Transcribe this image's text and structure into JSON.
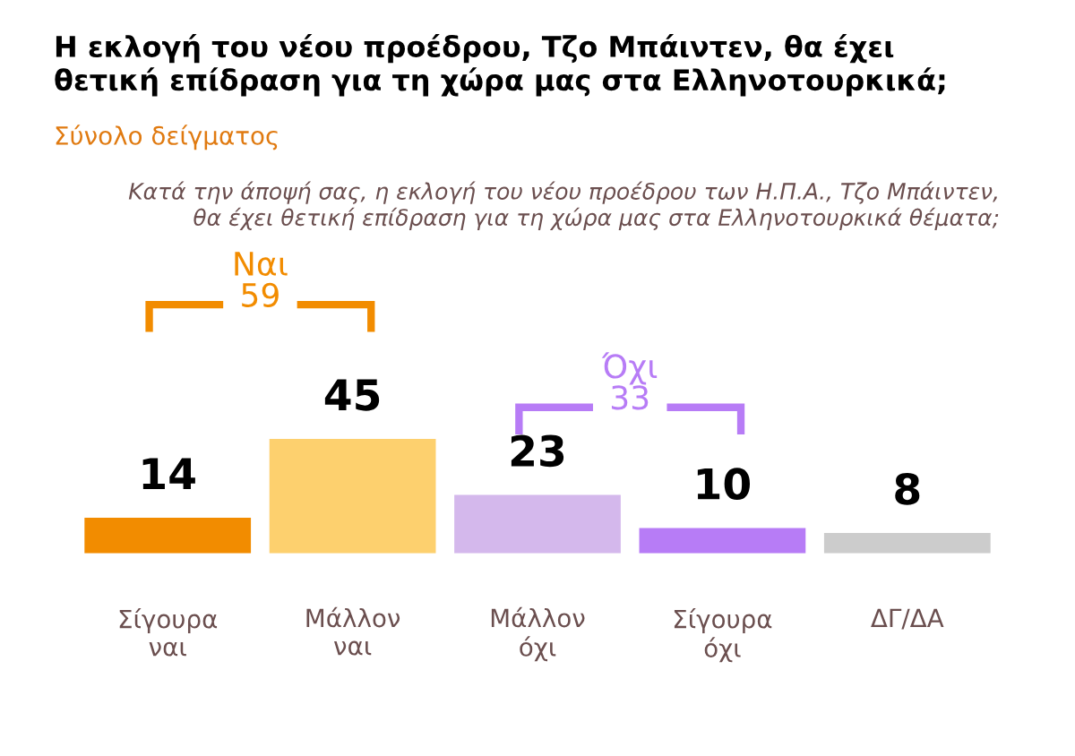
{
  "chart_data": {
    "type": "bar",
    "title": "Η εκλογή του νέου προέδρου, Τζο Μπάιντεν, θα έχει\nθετική επίδραση για τη χώρα μας στα Ελληνοτουρκικά;",
    "subtitle": "Σύνολο δείγματος",
    "annotations": [
      "Κατά την άποψή σας, η εκλογή του νέου προέδρου των Η.Π.Α., Τζο Μπάιντεν,\nθα έχει θετική επίδραση για τη χώρα μας στα Ελληνοτουρκικά θέματα;",
      "Ναι\n59",
      "Όχι\n33"
    ],
    "categories": [
      "Σίγουρα\nναι",
      "Μάλλον\nναι",
      "Μάλλον\nόχι",
      "Σίγουρα\nόχι",
      "ΔΓ/ΔΑ"
    ],
    "values": [
      14,
      45,
      23,
      10,
      8
    ],
    "colors": [
      "#f28c00",
      "#fdd06e",
      "#d4b8ec",
      "#b77cf6",
      "#cccccc"
    ],
    "data_labels": true
  }
}
